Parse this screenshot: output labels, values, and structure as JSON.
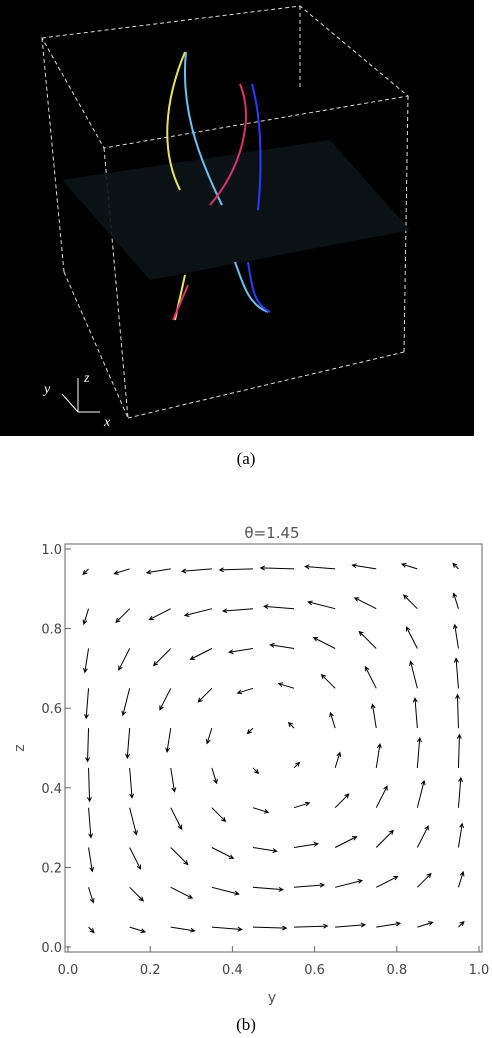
{
  "panel_a": {
    "axis_labels": {
      "y": "y",
      "z": "z",
      "x": "x"
    },
    "caption": "(a)"
  },
  "chart_data": {
    "type": "quiver",
    "title": "θ=1.45",
    "x_label": "y",
    "y_label": "z",
    "xlim": [
      0,
      1
    ],
    "ylim": [
      0,
      1
    ],
    "xticks": [
      {
        "value": 0,
        "label": "0.0"
      },
      {
        "value": 0.2,
        "label": "0.2"
      },
      {
        "value": 0.4,
        "label": "0.4"
      },
      {
        "value": 0.6,
        "label": "0.6"
      },
      {
        "value": 0.8,
        "label": "0.8"
      },
      {
        "value": 1,
        "label": "1.0"
      }
    ],
    "yticks": [
      {
        "value": 0,
        "label": "0.0"
      },
      {
        "value": 0.2,
        "label": "0.2"
      },
      {
        "value": 0.4,
        "label": "0.4"
      },
      {
        "value": 0.6,
        "label": "0.6"
      },
      {
        "value": 0.8,
        "label": "0.8"
      },
      {
        "value": 1,
        "label": "1.0"
      }
    ],
    "x": [
      0.05,
      0.15,
      0.25,
      0.35,
      0.45,
      0.55,
      0.65,
      0.75,
      0.85,
      0.95
    ],
    "y": [
      0.05,
      0.15,
      0.25,
      0.35,
      0.45,
      0.55,
      0.65,
      0.75,
      0.85,
      0.95
    ],
    "u": [
      [
        0.16,
        0.45,
        0.7,
        0.88,
        0.98,
        0.98,
        0.88,
        0.7,
        0.45,
        0.16
      ],
      [
        0.14,
        0.4,
        0.63,
        0.79,
        0.88,
        0.88,
        0.79,
        0.63,
        0.4,
        0.14
      ],
      [
        0.11,
        0.32,
        0.5,
        0.63,
        0.7,
        0.7,
        0.63,
        0.5,
        0.32,
        0.11
      ],
      [
        0.07,
        0.2,
        0.32,
        0.4,
        0.45,
        0.45,
        0.4,
        0.32,
        0.2,
        0.07
      ],
      [
        0.03,
        0.07,
        0.11,
        0.14,
        0.16,
        0.16,
        0.14,
        0.11,
        0.07,
        0.03
      ],
      [
        -0.03,
        -0.07,
        -0.11,
        -0.14,
        -0.16,
        -0.16,
        -0.14,
        -0.11,
        -0.07,
        -0.03
      ],
      [
        -0.07,
        -0.2,
        -0.32,
        -0.4,
        -0.45,
        -0.45,
        -0.4,
        -0.32,
        -0.2,
        -0.07
      ],
      [
        -0.11,
        -0.32,
        -0.5,
        -0.63,
        -0.7,
        -0.7,
        -0.63,
        -0.5,
        -0.32,
        -0.11
      ],
      [
        -0.14,
        -0.4,
        -0.63,
        -0.79,
        -0.88,
        -0.88,
        -0.79,
        -0.63,
        -0.4,
        -0.14
      ],
      [
        -0.16,
        -0.45,
        -0.7,
        -0.88,
        -0.98,
        -0.98,
        -0.88,
        -0.7,
        -0.45,
        -0.16
      ]
    ],
    "v": [
      [
        -0.16,
        -0.14,
        -0.11,
        -0.07,
        -0.03,
        0.03,
        0.07,
        0.11,
        0.14,
        0.16
      ],
      [
        -0.45,
        -0.4,
        -0.32,
        -0.2,
        -0.07,
        0.07,
        0.2,
        0.32,
        0.4,
        0.45
      ],
      [
        -0.7,
        -0.63,
        -0.5,
        -0.32,
        -0.11,
        0.11,
        0.32,
        0.5,
        0.63,
        0.7
      ],
      [
        -0.88,
        -0.79,
        -0.63,
        -0.4,
        -0.14,
        0.14,
        0.4,
        0.63,
        0.79,
        0.88
      ],
      [
        -0.98,
        -0.88,
        -0.7,
        -0.45,
        -0.16,
        0.16,
        0.45,
        0.7,
        0.88,
        0.98
      ],
      [
        -0.98,
        -0.88,
        -0.7,
        -0.45,
        -0.16,
        0.16,
        0.45,
        0.7,
        0.88,
        0.98
      ],
      [
        -0.88,
        -0.79,
        -0.63,
        -0.4,
        -0.14,
        0.14,
        0.4,
        0.63,
        0.79,
        0.88
      ],
      [
        -0.7,
        -0.63,
        -0.5,
        -0.32,
        -0.11,
        0.11,
        0.32,
        0.5,
        0.63,
        0.7
      ],
      [
        -0.45,
        -0.4,
        -0.32,
        -0.2,
        -0.07,
        0.07,
        0.2,
        0.32,
        0.4,
        0.45
      ],
      [
        -0.16,
        -0.14,
        -0.11,
        -0.07,
        -0.03,
        0.03,
        0.07,
        0.11,
        0.14,
        0.16
      ]
    ],
    "color": "#000000",
    "caption": "(b)"
  }
}
